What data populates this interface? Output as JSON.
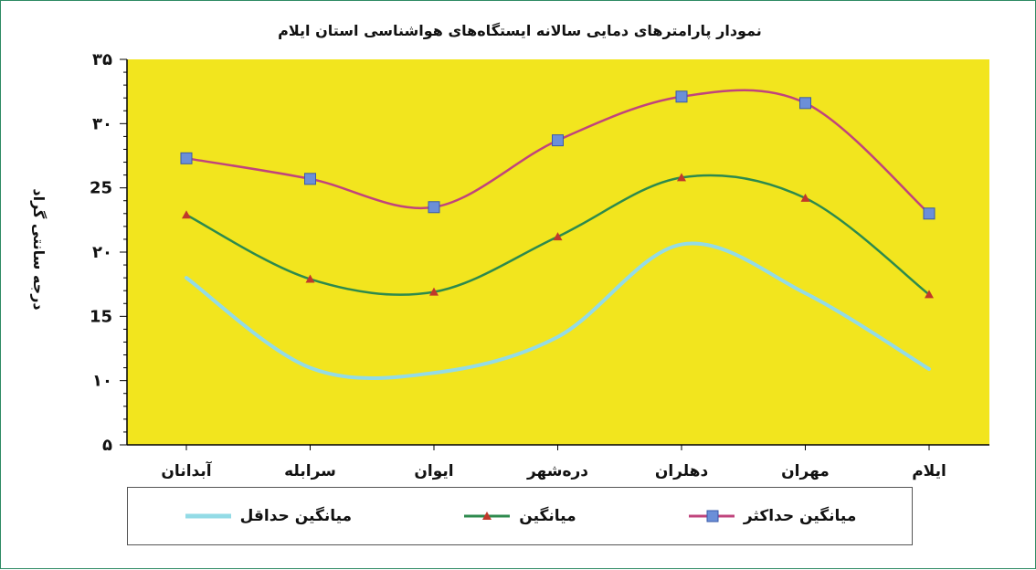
{
  "chart_data": {
    "type": "line",
    "title": "نمودار پارامترهای دمایی سالانه ایستگاه‌های هواشناسی استان ایلام",
    "ylabel": "درجه سانتی گراد",
    "xlabel": "",
    "categories": [
      "ایلام",
      "مهران",
      "دهلران",
      "دره‌شهر",
      "ایوان",
      "سرابله",
      "آبدانان"
    ],
    "ylim": [
      5,
      35
    ],
    "yticks": [
      5,
      10,
      15,
      20,
      25,
      30,
      35
    ],
    "ytick_labels": [
      "۵",
      "۱۰",
      "15",
      "۲۰",
      "25",
      "۳۰",
      "۳۵"
    ],
    "grid": false,
    "legend_position": "bottom",
    "background": "#f2e51e",
    "series": [
      {
        "name": "میانگین حداکثر",
        "values": [
          23.0,
          31.6,
          32.1,
          28.7,
          23.5,
          25.7,
          27.3
        ],
        "color": "#c0447c",
        "marker": "square",
        "marker_color": "#6b8fd8"
      },
      {
        "name": "میانگین",
        "values": [
          16.7,
          24.2,
          25.8,
          21.2,
          16.9,
          17.9,
          22.9
        ],
        "color": "#2d8a4d",
        "marker": "triangle",
        "marker_color": "#c0392b"
      },
      {
        "name": "میانگین حداقل",
        "values": [
          10.9,
          16.8,
          20.6,
          13.4,
          10.6,
          11.0,
          18.0
        ],
        "color": "#93dbe6",
        "marker": "none"
      }
    ]
  }
}
